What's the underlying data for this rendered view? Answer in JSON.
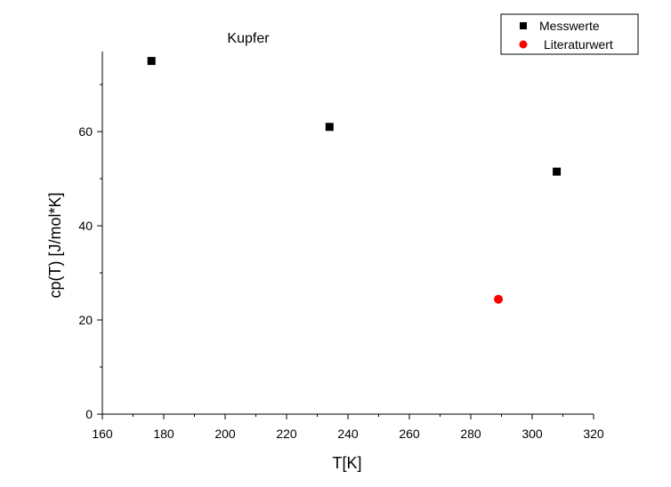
{
  "chart_data": {
    "type": "scatter",
    "title": "Kupfer",
    "xlabel": "T[K]",
    "ylabel": "cp(T) [J/mol*K]",
    "xlim": [
      160,
      320
    ],
    "ylim": [
      0,
      77
    ],
    "xticks": [
      160,
      180,
      200,
      220,
      240,
      260,
      280,
      300,
      320
    ],
    "yticks": [
      0,
      20,
      40,
      60
    ],
    "grid": false,
    "legend_position": "top-right",
    "series": [
      {
        "name": "Messwerte",
        "marker": "square",
        "color": "#000000",
        "points": [
          {
            "x": 176,
            "y": 75
          },
          {
            "x": 234,
            "y": 61
          },
          {
            "x": 308,
            "y": 51.5
          }
        ]
      },
      {
        "name": "Literaturwert",
        "marker": "circle",
        "color": "#ff0000",
        "points": [
          {
            "x": 289,
            "y": 24.4
          }
        ]
      }
    ]
  }
}
